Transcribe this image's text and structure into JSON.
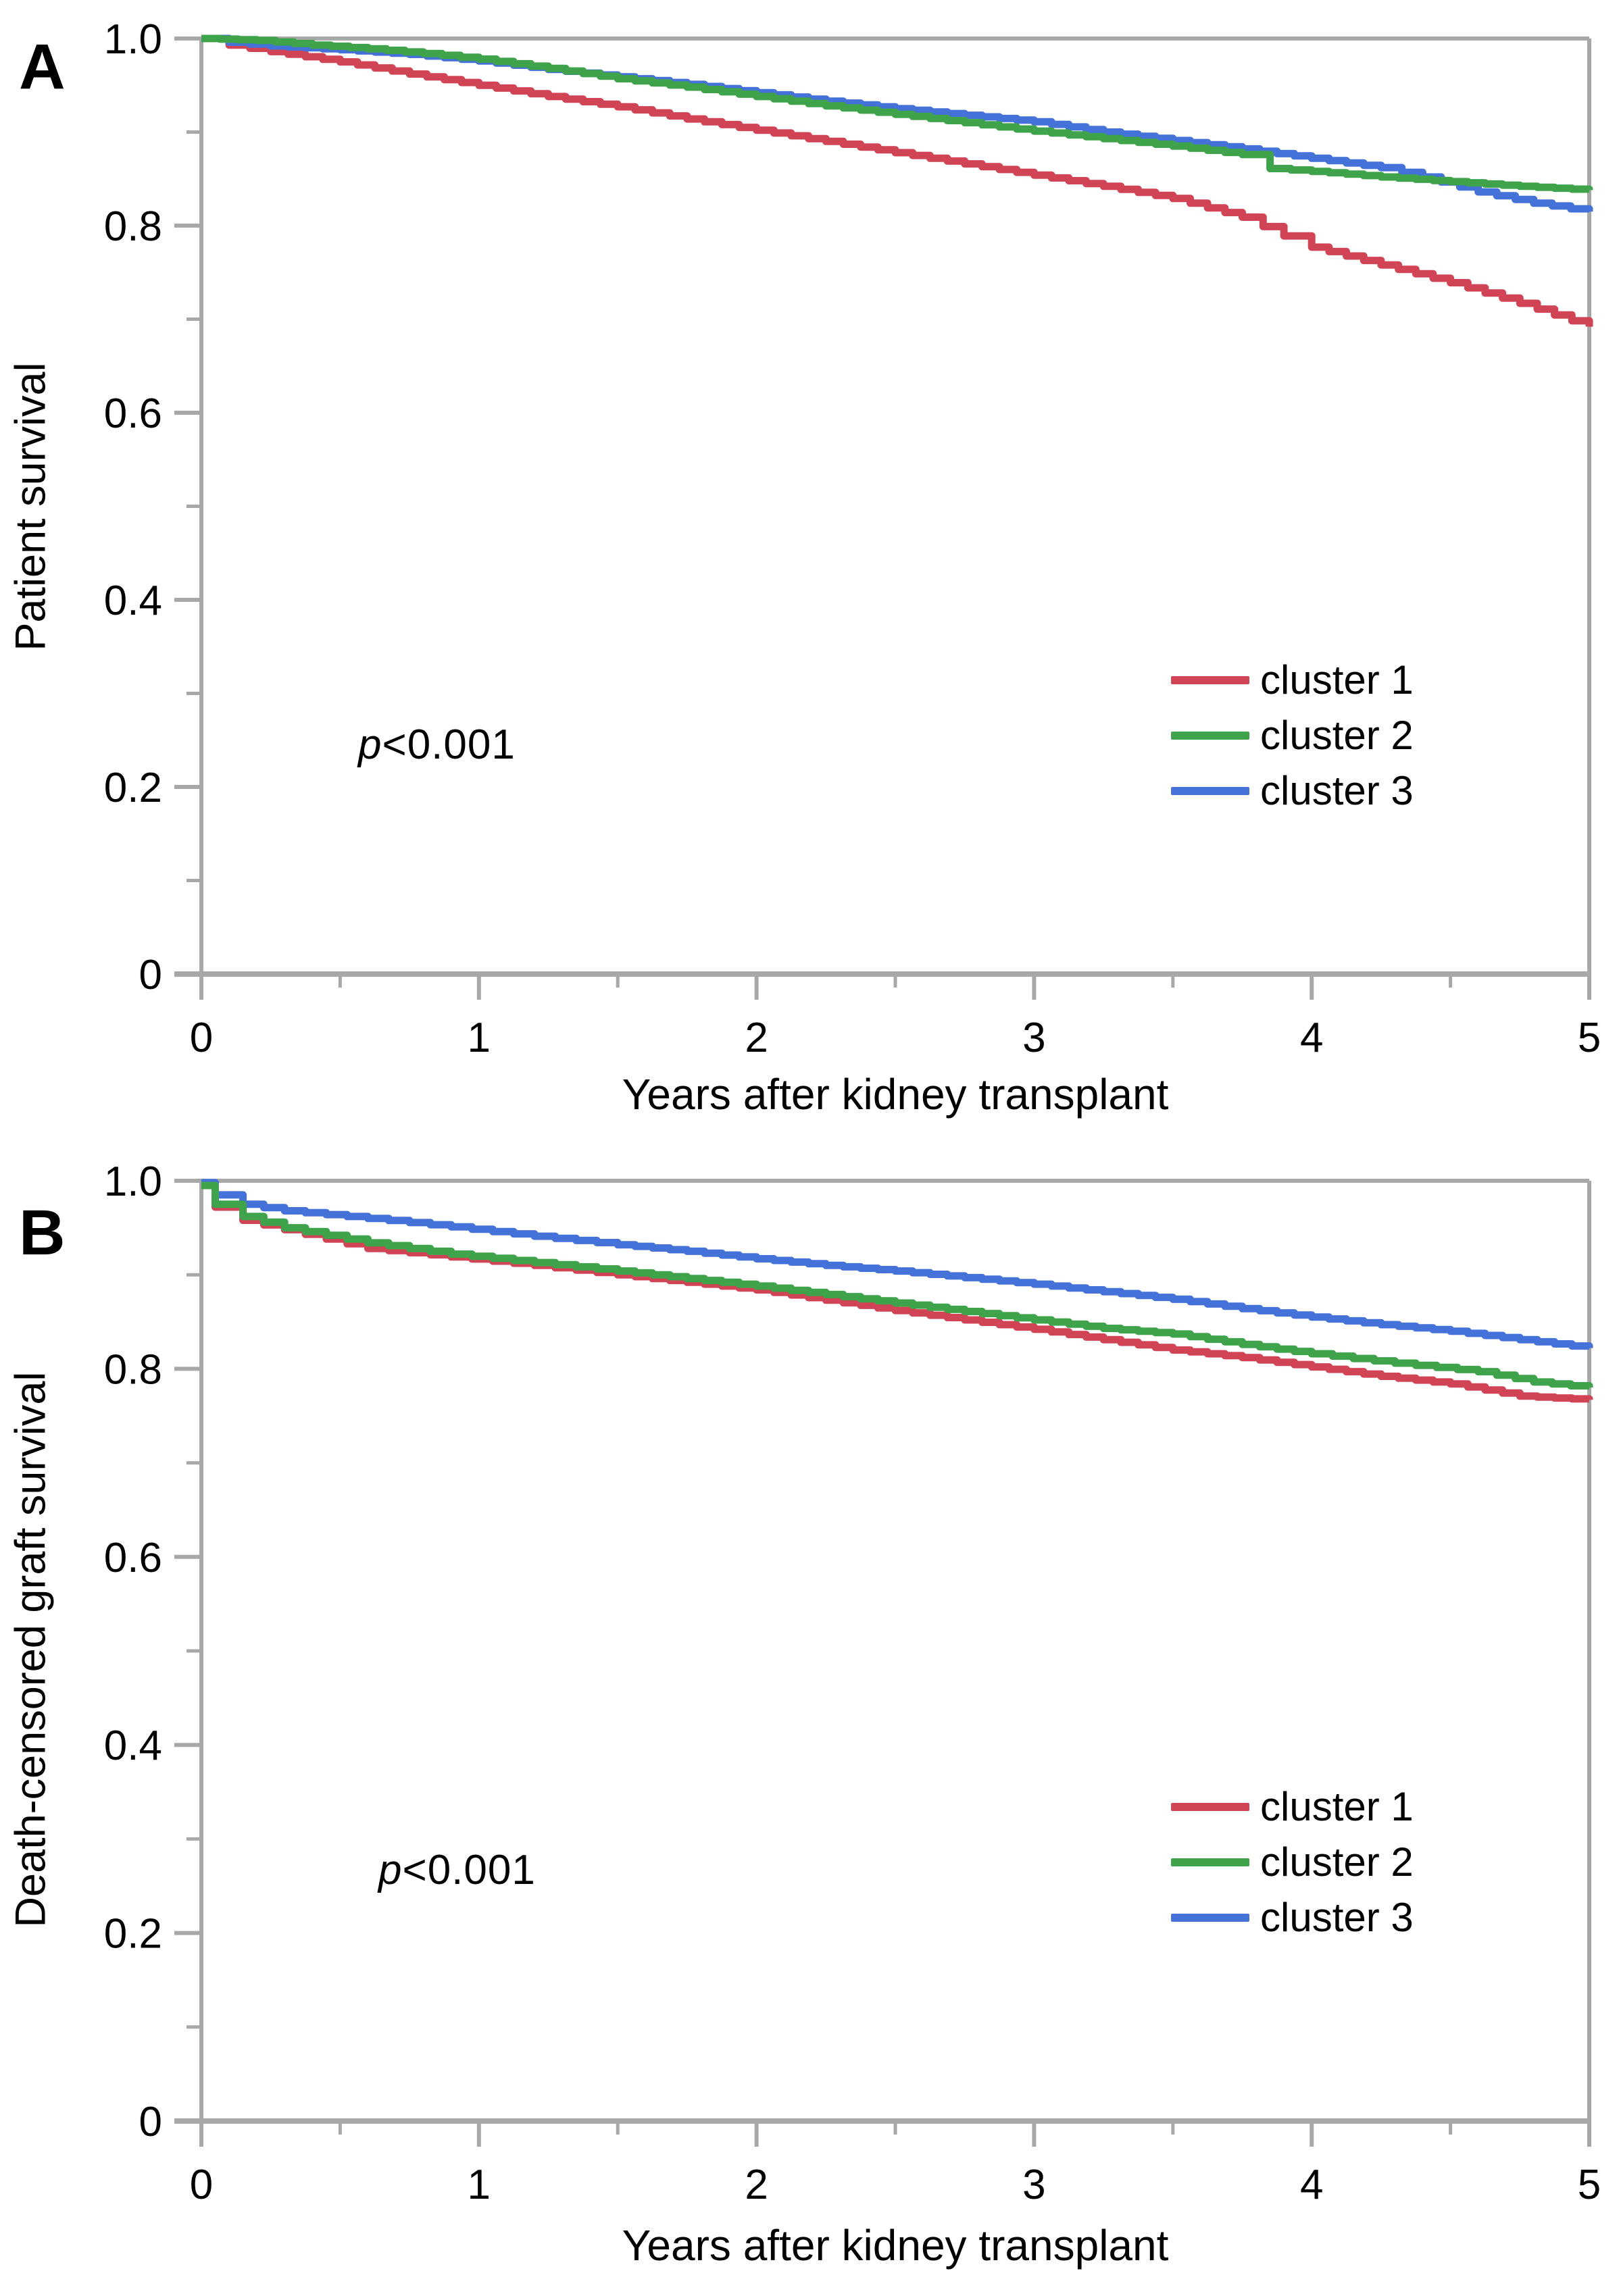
{
  "page": {
    "background": "#ffffff"
  },
  "colors": {
    "axis": "#a8a8a8",
    "text": "#000000",
    "cluster1": "#d14456",
    "cluster2": "#3ea34a",
    "cluster3": "#4472d8"
  },
  "chart_data": [
    {
      "type": "line",
      "subtype": "kaplan-meier-step",
      "panel_label": "A",
      "xlabel": "Years after kidney transplant",
      "ylabel": "Patient survival",
      "p_label": {
        "italic": "p",
        "rest": "<0.001"
      },
      "xlim": [
        0,
        5
      ],
      "ylim": [
        0,
        1
      ],
      "grid": false,
      "legend_position": "right-middle",
      "xticks": [
        {
          "value": 0,
          "label": "0"
        },
        {
          "value": 1,
          "label": "1"
        },
        {
          "value": 2,
          "label": "2"
        },
        {
          "value": 3,
          "label": "3"
        },
        {
          "value": 4,
          "label": "4"
        },
        {
          "value": 5,
          "label": "5"
        }
      ],
      "xticks_minor": [
        0.5,
        1.5,
        2.5,
        3.5,
        4.5
      ],
      "yticks": [
        {
          "value": 1.0,
          "label": "1.0"
        },
        {
          "value": 0.8,
          "label": "0.8"
        },
        {
          "value": 0.6,
          "label": "0.6"
        },
        {
          "value": 0.4,
          "label": "0.4"
        },
        {
          "value": 0.2,
          "label": "0.2"
        },
        {
          "value": 0.0,
          "label": "0"
        }
      ],
      "yticks_minor": [
        0.9,
        0.7,
        0.5,
        0.3,
        0.1
      ],
      "series": [
        {
          "name": "cluster 1",
          "color_key": "cluster1",
          "points": [
            [
              0,
              1.0
            ],
            [
              0.1,
              0.993
            ],
            [
              0.25,
              0.986
            ],
            [
              0.5,
              0.975
            ],
            [
              0.75,
              0.962
            ],
            [
              1,
              0.95
            ],
            [
              1.25,
              0.938
            ],
            [
              1.5,
              0.927
            ],
            [
              1.75,
              0.914
            ],
            [
              2,
              0.902
            ],
            [
              2.25,
              0.89
            ],
            [
              2.5,
              0.878
            ],
            [
              2.75,
              0.866
            ],
            [
              3,
              0.854
            ],
            [
              3.25,
              0.842
            ],
            [
              3.5,
              0.829
            ],
            [
              3.75,
              0.809
            ],
            [
              3.9,
              0.789
            ],
            [
              4,
              0.777
            ],
            [
              4.25,
              0.758
            ],
            [
              4.5,
              0.739
            ],
            [
              4.75,
              0.717
            ],
            [
              5,
              0.692
            ]
          ]
        },
        {
          "name": "cluster 2",
          "color_key": "cluster2",
          "points": [
            [
              0,
              1.0
            ],
            [
              0.2,
              0.998
            ],
            [
              0.4,
              0.993
            ],
            [
              0.6,
              0.989
            ],
            [
              0.8,
              0.984
            ],
            [
              1,
              0.978
            ],
            [
              1.25,
              0.968
            ],
            [
              1.5,
              0.957
            ],
            [
              1.75,
              0.948
            ],
            [
              2,
              0.938
            ],
            [
              2.25,
              0.928
            ],
            [
              2.5,
              0.919
            ],
            [
              2.75,
              0.91
            ],
            [
              3,
              0.901
            ],
            [
              3.25,
              0.893
            ],
            [
              3.5,
              0.885
            ],
            [
              3.75,
              0.876
            ],
            [
              3.85,
              0.861
            ],
            [
              4,
              0.858
            ],
            [
              4.25,
              0.852
            ],
            [
              4.5,
              0.847
            ],
            [
              4.75,
              0.842
            ],
            [
              5,
              0.838
            ]
          ]
        },
        {
          "name": "cluster 3",
          "color_key": "cluster3",
          "points": [
            [
              0,
              1.0
            ],
            [
              0.1,
              0.996
            ],
            [
              0.25,
              0.992
            ],
            [
              0.5,
              0.988
            ],
            [
              0.75,
              0.983
            ],
            [
              1,
              0.976
            ],
            [
              1.25,
              0.967
            ],
            [
              1.5,
              0.959
            ],
            [
              1.75,
              0.951
            ],
            [
              2,
              0.942
            ],
            [
              2.25,
              0.933
            ],
            [
              2.5,
              0.925
            ],
            [
              2.75,
              0.918
            ],
            [
              3,
              0.911
            ],
            [
              3.25,
              0.9
            ],
            [
              3.5,
              0.891
            ],
            [
              3.75,
              0.882
            ],
            [
              4,
              0.872
            ],
            [
              4.25,
              0.862
            ],
            [
              4.4,
              0.852
            ],
            [
              4.6,
              0.836
            ],
            [
              4.8,
              0.824
            ],
            [
              5,
              0.815
            ]
          ]
        }
      ]
    },
    {
      "type": "line",
      "subtype": "kaplan-meier-step",
      "panel_label": "B",
      "xlabel": "Years after kidney transplant",
      "ylabel": "Death-censored graft survival",
      "p_label": {
        "italic": "p",
        "rest": "<0.001"
      },
      "xlim": [
        0,
        5
      ],
      "ylim": [
        0,
        1
      ],
      "grid": false,
      "legend_position": "right-middle",
      "xticks": [
        {
          "value": 0,
          "label": "0"
        },
        {
          "value": 1,
          "label": "1"
        },
        {
          "value": 2,
          "label": "2"
        },
        {
          "value": 3,
          "label": "3"
        },
        {
          "value": 4,
          "label": "4"
        },
        {
          "value": 5,
          "label": "5"
        }
      ],
      "xticks_minor": [
        0.5,
        1.5,
        2.5,
        3.5,
        4.5
      ],
      "yticks": [
        {
          "value": 1.0,
          "label": "1.0"
        },
        {
          "value": 0.8,
          "label": "0.8"
        },
        {
          "value": 0.6,
          "label": "0.6"
        },
        {
          "value": 0.4,
          "label": "0.4"
        },
        {
          "value": 0.2,
          "label": "0.2"
        },
        {
          "value": 0.0,
          "label": "0"
        }
      ],
      "yticks_minor": [
        0.9,
        0.7,
        0.5,
        0.3,
        0.1
      ],
      "series": [
        {
          "name": "cluster 1",
          "color_key": "cluster1",
          "points": [
            [
              0,
              0.995
            ],
            [
              0.05,
              0.972
            ],
            [
              0.15,
              0.958
            ],
            [
              0.3,
              0.948
            ],
            [
              0.6,
              0.928
            ],
            [
              0.9,
              0.919
            ],
            [
              1.2,
              0.91
            ],
            [
              1.5,
              0.9
            ],
            [
              1.75,
              0.892
            ],
            [
              2,
              0.884
            ],
            [
              2.25,
              0.873
            ],
            [
              2.5,
              0.862
            ],
            [
              2.75,
              0.852
            ],
            [
              3,
              0.842
            ],
            [
              3.25,
              0.831
            ],
            [
              3.5,
              0.82
            ],
            [
              3.75,
              0.812
            ],
            [
              4,
              0.802
            ],
            [
              4.25,
              0.792
            ],
            [
              4.5,
              0.784
            ],
            [
              4.75,
              0.771
            ],
            [
              5,
              0.767
            ]
          ]
        },
        {
          "name": "cluster 2",
          "color_key": "cluster2",
          "points": [
            [
              0,
              0.995
            ],
            [
              0.05,
              0.975
            ],
            [
              0.15,
              0.962
            ],
            [
              0.3,
              0.95
            ],
            [
              0.6,
              0.934
            ],
            [
              0.9,
              0.922
            ],
            [
              1.2,
              0.913
            ],
            [
              1.5,
              0.904
            ],
            [
              1.75,
              0.896
            ],
            [
              2,
              0.888
            ],
            [
              2.25,
              0.879
            ],
            [
              2.5,
              0.87
            ],
            [
              2.75,
              0.861
            ],
            [
              3,
              0.852
            ],
            [
              3.25,
              0.843
            ],
            [
              3.5,
              0.837
            ],
            [
              3.75,
              0.826
            ],
            [
              4,
              0.816
            ],
            [
              4.3,
              0.806
            ],
            [
              4.6,
              0.797
            ],
            [
              4.8,
              0.786
            ],
            [
              5,
              0.78
            ]
          ]
        },
        {
          "name": "cluster 3",
          "color_key": "cluster3",
          "points": [
            [
              0,
              0.998
            ],
            [
              0.05,
              0.985
            ],
            [
              0.15,
              0.975
            ],
            [
              0.3,
              0.968
            ],
            [
              0.6,
              0.96
            ],
            [
              0.9,
              0.951
            ],
            [
              1.2,
              0.941
            ],
            [
              1.5,
              0.932
            ],
            [
              1.75,
              0.925
            ],
            [
              2,
              0.917
            ],
            [
              2.25,
              0.91
            ],
            [
              2.5,
              0.904
            ],
            [
              2.75,
              0.897
            ],
            [
              3,
              0.89
            ],
            [
              3.25,
              0.882
            ],
            [
              3.5,
              0.874
            ],
            [
              3.75,
              0.864
            ],
            [
              4,
              0.855
            ],
            [
              4.25,
              0.847
            ],
            [
              4.5,
              0.84
            ],
            [
              4.75,
              0.831
            ],
            [
              5,
              0.822
            ]
          ]
        }
      ]
    }
  ]
}
